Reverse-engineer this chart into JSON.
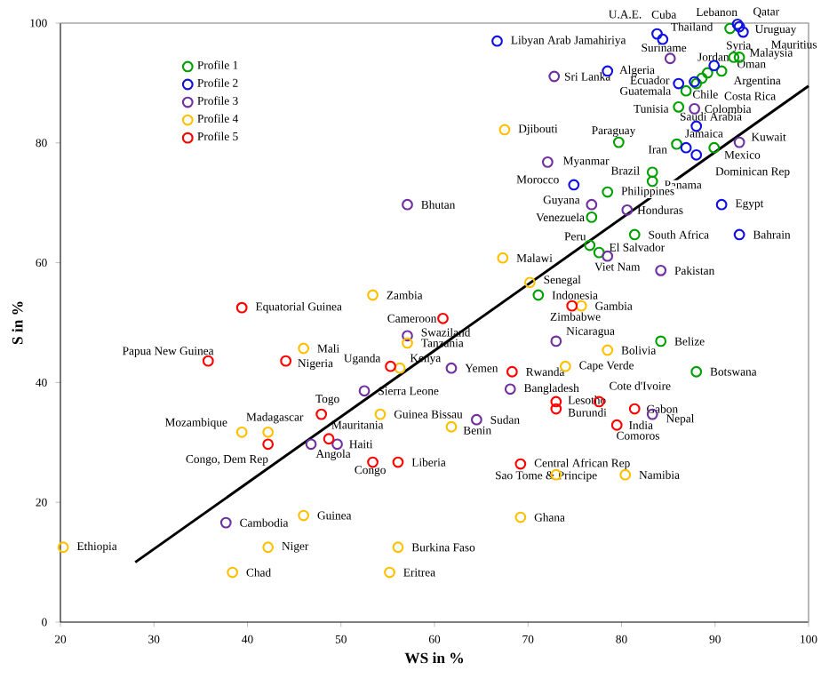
{
  "chart_data": {
    "type": "scatter",
    "xlabel": "WS in %",
    "ylabel": "S in %",
    "xlim": [
      20,
      100
    ],
    "ylim": [
      0,
      100
    ],
    "xticks": [
      20,
      30,
      40,
      50,
      60,
      70,
      80,
      90,
      100
    ],
    "yticks": [
      0,
      20,
      40,
      60,
      80,
      100
    ],
    "legend": "top left",
    "marker": "circle",
    "series": [
      {
        "name": "Profile 1",
        "color": "#00a000",
        "x": [
          91.6,
          92.0,
          92.6,
          88.6,
          89.2,
          90.7,
          88.0,
          86.9,
          86.1,
          79.7,
          85.9,
          89.9,
          83.3,
          83.3,
          78.5,
          76.8,
          81.4,
          76.6,
          77.6,
          71.1,
          84.2,
          88.0
        ],
        "values": [
          99.1,
          94.3,
          94.3,
          90.8,
          91.7,
          92.0,
          89.9,
          88.7,
          86.0,
          80.1,
          79.8,
          79.2,
          75.1,
          73.6,
          71.8,
          67.6,
          64.7,
          62.9,
          61.7,
          54.6,
          46.9,
          41.8
        ]
      },
      {
        "name": "Profile 2",
        "color": "#1010e0",
        "x": [
          66.7,
          83.8,
          84.4,
          92.4,
          92.6,
          93.0,
          89.9,
          78.5,
          86.1,
          87.8,
          88.0,
          86.9,
          88.0,
          74.9,
          90.7,
          92.6
        ],
        "values": [
          97.0,
          98.2,
          97.3,
          99.8,
          99.4,
          98.5,
          92.9,
          92.0,
          89.9,
          90.2,
          82.8,
          79.2,
          78.0,
          73.0,
          69.7,
          64.7
        ]
      },
      {
        "name": "Profile 3",
        "color": "#7030a0",
        "x": [
          85.2,
          72.8,
          87.8,
          92.6,
          72.1,
          76.8,
          80.6,
          78.5,
          84.2,
          57.1,
          73.0,
          61.8,
          57.1,
          52.5,
          64.5,
          68.1,
          83.3,
          49.6,
          46.8,
          37.7
        ],
        "values": [
          94.1,
          91.1,
          85.7,
          80.1,
          76.8,
          69.7,
          68.8,
          61.1,
          58.7,
          69.7,
          46.9,
          42.4,
          47.8,
          38.6,
          33.8,
          38.9,
          34.7,
          29.7,
          29.7,
          16.6
        ]
      },
      {
        "name": "Profile 4",
        "color": "#ffc000",
        "x": [
          67.5,
          67.3,
          70.2,
          75.7,
          53.4,
          57.1,
          46.0,
          56.3,
          78.5,
          74.0,
          54.2,
          61.8,
          42.2,
          39.4,
          73.0,
          80.4,
          69.2,
          46.0,
          20.3,
          42.2,
          56.1,
          38.4,
          55.2
        ],
        "values": [
          82.2,
          60.8,
          56.7,
          52.8,
          54.6,
          46.6,
          45.7,
          42.4,
          45.4,
          42.7,
          34.7,
          32.6,
          31.7,
          31.7,
          24.6,
          24.6,
          17.5,
          17.8,
          12.5,
          12.5,
          12.5,
          8.3,
          8.3
        ]
      },
      {
        "name": "Profile 5",
        "color": "#ff0000",
        "x": [
          39.4,
          60.9,
          74.7,
          35.8,
          44.1,
          55.3,
          68.3,
          47.9,
          48.7,
          42.2,
          53.4,
          56.1,
          73.0,
          73.0,
          77.6,
          81.4,
          79.5,
          69.2
        ],
        "values": [
          52.5,
          50.7,
          52.8,
          43.6,
          43.6,
          42.7,
          41.8,
          34.7,
          30.6,
          29.7,
          26.7,
          26.7,
          36.8,
          35.6,
          36.8,
          35.6,
          32.9,
          26.4
        ]
      },
      {
        "type": "line",
        "marker": "none",
        "color": "#000000",
        "x": [
          28,
          100
        ],
        "values": [
          10,
          89.5
        ]
      }
    ],
    "annotations": [
      {
        "text": "U.A.E.",
        "x": 83.8,
        "y": 98.2
      },
      {
        "text": "Cuba",
        "x": 84.4,
        "y": 97.3
      },
      {
        "text": "Lebanon",
        "x": 92.4,
        "y": 99.8
      },
      {
        "text": "Qatar",
        "x": 92.6,
        "y": 99.4
      },
      {
        "text": "Thailand",
        "x": 91.6,
        "y": 99.1
      },
      {
        "text": "Uruguay",
        "x": 93.0,
        "y": 98.5
      },
      {
        "text": "Libyan Arab Jamahiriya",
        "x": 66.7,
        "y": 97.0
      },
      {
        "text": "Mauritius",
        "x": 93.0,
        "y": 98.5
      },
      {
        "text": "Suriname",
        "x": 85.2,
        "y": 94.1
      },
      {
        "text": "Jordan",
        "x": 89.9,
        "y": 92.9
      },
      {
        "text": "Syria",
        "x": 92.0,
        "y": 94.3
      },
      {
        "text": "Malaysia",
        "x": 92.6,
        "y": 94.3
      },
      {
        "text": "Oman",
        "x": 90.7,
        "y": 92.0
      },
      {
        "text": "Sri Lanka",
        "x": 72.8,
        "y": 91.1
      },
      {
        "text": "Algeria",
        "x": 78.5,
        "y": 92.0
      },
      {
        "text": "Argentina",
        "x": 89.2,
        "y": 91.7
      },
      {
        "text": "Chile",
        "x": 88.6,
        "y": 90.8
      },
      {
        "text": "Guatemala",
        "x": 86.9,
        "y": 88.7
      },
      {
        "text": "Ecuador",
        "x": 86.1,
        "y": 89.9
      },
      {
        "text": "Costa Rica",
        "x": 88.0,
        "y": 89.9
      },
      {
        "text": "Tunisia",
        "x": 86.1,
        "y": 86.0
      },
      {
        "text": "Colombia",
        "x": 87.8,
        "y": 85.7
      },
      {
        "text": "Saudi Arabia",
        "x": 88.0,
        "y": 82.8
      },
      {
        "text": "Djibouti",
        "x": 67.5,
        "y": 82.2
      },
      {
        "text": "Paraguay",
        "x": 79.7,
        "y": 80.1
      },
      {
        "text": "Kuwait",
        "x": 92.6,
        "y": 80.1
      },
      {
        "text": "Jamaica",
        "x": 85.9,
        "y": 79.8
      },
      {
        "text": "Iran",
        "x": 86.9,
        "y": 79.2
      },
      {
        "text": "Mexico",
        "x": 88.0,
        "y": 78.0
      },
      {
        "text": "Myanmar",
        "x": 72.1,
        "y": 76.8
      },
      {
        "text": "Dominican Rep",
        "x": 89.9,
        "y": 79.2
      },
      {
        "text": "Brazil",
        "x": 83.3,
        "y": 75.1
      },
      {
        "text": "Morocco",
        "x": 74.9,
        "y": 73.0
      },
      {
        "text": "Panama",
        "x": 83.3,
        "y": 73.6
      },
      {
        "text": "Philippines",
        "x": 78.5,
        "y": 71.8
      },
      {
        "text": "Guyana",
        "x": 76.8,
        "y": 69.7
      },
      {
        "text": "Honduras",
        "x": 80.6,
        "y": 68.8
      },
      {
        "text": "Bhutan",
        "x": 57.1,
        "y": 69.7
      },
      {
        "text": "Egypt",
        "x": 90.7,
        "y": 69.7
      },
      {
        "text": "Venezuela",
        "x": 76.8,
        "y": 67.6
      },
      {
        "text": "South Africa",
        "x": 81.4,
        "y": 64.7
      },
      {
        "text": "Bahrain",
        "x": 92.6,
        "y": 64.7
      },
      {
        "text": "Peru",
        "x": 76.6,
        "y": 62.9
      },
      {
        "text": "El Salvador",
        "x": 77.6,
        "y": 61.7
      },
      {
        "text": "Viet Nam",
        "x": 78.5,
        "y": 61.1
      },
      {
        "text": "Pakistan",
        "x": 84.2,
        "y": 58.7
      },
      {
        "text": "Malawi",
        "x": 67.3,
        "y": 60.8
      },
      {
        "text": "Senegal",
        "x": 70.2,
        "y": 56.7
      },
      {
        "text": "Indonesia",
        "x": 71.1,
        "y": 54.6
      },
      {
        "text": "Zambia",
        "x": 53.4,
        "y": 54.6
      },
      {
        "text": "Equatorial Guinea",
        "x": 39.4,
        "y": 52.5
      },
      {
        "text": "Gambia",
        "x": 75.7,
        "y": 52.8
      },
      {
        "text": "Zimbabwe",
        "x": 74.7,
        "y": 52.8
      },
      {
        "text": "Cameroon",
        "x": 60.9,
        "y": 50.7
      },
      {
        "text": "Swaziland",
        "x": 57.1,
        "y": 47.8
      },
      {
        "text": "Nicaragua",
        "x": 73.0,
        "y": 46.9
      },
      {
        "text": "Tanzania",
        "x": 57.1,
        "y": 46.6
      },
      {
        "text": "Mali",
        "x": 46.0,
        "y": 45.7
      },
      {
        "text": "Bolivia",
        "x": 78.5,
        "y": 45.4
      },
      {
        "text": "Belize",
        "x": 84.2,
        "y": 46.9
      },
      {
        "text": "Papua New Guinea",
        "x": 35.8,
        "y": 43.6
      },
      {
        "text": "Uganda",
        "x": 55.3,
        "y": 42.7
      },
      {
        "text": "Kenya",
        "x": 56.3,
        "y": 42.4
      },
      {
        "text": "Nigeria",
        "x": 44.1,
        "y": 43.6
      },
      {
        "text": "Yemen",
        "x": 61.8,
        "y": 42.4
      },
      {
        "text": "Rwanda",
        "x": 68.3,
        "y": 41.8
      },
      {
        "text": "Cape Verde",
        "x": 74.0,
        "y": 42.7
      },
      {
        "text": "Botswana",
        "x": 88.0,
        "y": 41.8
      },
      {
        "text": "Sierra Leone",
        "x": 52.5,
        "y": 38.6
      },
      {
        "text": "Bangladesh",
        "x": 68.1,
        "y": 38.9
      },
      {
        "text": "Cote d'Ivoire",
        "x": 77.6,
        "y": 36.8
      },
      {
        "text": "Lesotho",
        "x": 73.0,
        "y": 36.8
      },
      {
        "text": "Togo",
        "x": 47.9,
        "y": 34.7
      },
      {
        "text": "Burundi",
        "x": 73.0,
        "y": 35.6
      },
      {
        "text": "Gabon",
        "x": 81.4,
        "y": 35.6
      },
      {
        "text": "Nepal",
        "x": 83.3,
        "y": 34.7
      },
      {
        "text": "Madagascar",
        "x": 42.2,
        "y": 31.7
      },
      {
        "text": "Mauritania",
        "x": 47.9,
        "y": 34.7
      },
      {
        "text": "Guinea Bissau",
        "x": 54.2,
        "y": 34.7
      },
      {
        "text": "Sudan",
        "x": 64.5,
        "y": 33.8
      },
      {
        "text": "Mozambique",
        "x": 39.4,
        "y": 31.7
      },
      {
        "text": "India",
        "x": 79.5,
        "y": 32.9
      },
      {
        "text": "Angola",
        "x": 48.7,
        "y": 30.6
      },
      {
        "text": "Benin",
        "x": 61.8,
        "y": 32.6
      },
      {
        "text": "Comoros",
        "x": 79.5,
        "y": 32.9
      },
      {
        "text": "Haiti",
        "x": 49.6,
        "y": 29.7
      },
      {
        "text": "Congo, Dem Rep",
        "x": 42.2,
        "y": 29.7
      },
      {
        "text": "Congo",
        "x": 53.4,
        "y": 26.7
      },
      {
        "text": "Liberia",
        "x": 56.1,
        "y": 26.7
      },
      {
        "text": "Central African Rep",
        "x": 69.2,
        "y": 26.4
      },
      {
        "text": "Sao Tome & Principe",
        "x": 73.0,
        "y": 24.6
      },
      {
        "text": "Namibia",
        "x": 80.4,
        "y": 24.6
      },
      {
        "text": "Ghana",
        "x": 69.2,
        "y": 17.5
      },
      {
        "text": "Cambodia",
        "x": 37.7,
        "y": 16.6
      },
      {
        "text": "Guinea",
        "x": 46.0,
        "y": 17.8
      },
      {
        "text": "Ethiopia",
        "x": 20.3,
        "y": 12.5
      },
      {
        "text": "Niger",
        "x": 42.2,
        "y": 12.5
      },
      {
        "text": "Burkina Faso",
        "x": 56.1,
        "y": 12.5
      },
      {
        "text": "Chad",
        "x": 38.4,
        "y": 8.3
      },
      {
        "text": "Eritrea",
        "x": 55.2,
        "y": 8.3
      }
    ]
  }
}
